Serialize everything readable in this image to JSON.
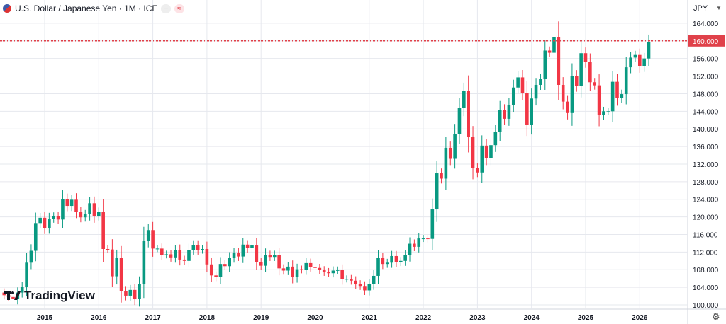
{
  "header": {
    "title": "U.S. Dollar / Japanese Yen · 1M · ICE",
    "pill1": "−",
    "pill2": "≈"
  },
  "currency": "JPY",
  "logo": "TradingView",
  "colors": {
    "up": "#089981",
    "down": "#f23645",
    "priceline": "#e0414a",
    "grid": "#e6e8ee"
  },
  "chart_data": {
    "type": "candlestick",
    "title": "U.S. Dollar / Japanese Yen · 1M · ICE",
    "ylabel": "JPY",
    "ylim": [
      99.5,
      166
    ],
    "yticks": [
      "100.000",
      "104.000",
      "108.000",
      "112.000",
      "116.000",
      "120.000",
      "124.000",
      "128.000",
      "132.000",
      "136.000",
      "140.000",
      "144.000",
      "148.000",
      "152.000",
      "156.000",
      "160.000",
      "164.000"
    ],
    "xticks": [
      "2015",
      "2016",
      "2017",
      "2018",
      "2019",
      "2020",
      "2021",
      "2022",
      "2023",
      "2024",
      "2025",
      "2026"
    ],
    "first_month": "2014-04",
    "first_open": 102.8,
    "closes": [
      102.2,
      101.8,
      101.3,
      102.8,
      104.1,
      109.6,
      112.3,
      118.6,
      119.8,
      117.5,
      119.6,
      120.1,
      119.4,
      124.1,
      122.5,
      123.9,
      121.2,
      119.9,
      120.6,
      123.1,
      120.2,
      121.1,
      112.7,
      112.6,
      106.5,
      110.7,
      103.2,
      102.1,
      103.4,
      101.3,
      104.8,
      114.5,
      117.0,
      112.8,
      112.8,
      111.4,
      111.5,
      110.8,
      112.4,
      110.3,
      110.0,
      112.5,
      113.6,
      112.5,
      112.7,
      109.2,
      106.7,
      106.3,
      109.3,
      108.8,
      110.7,
      111.9,
      111.0,
      113.7,
      112.9,
      113.5,
      109.7,
      108.9,
      111.4,
      110.9,
      111.4,
      108.3,
      107.8,
      108.7,
      106.3,
      108.1,
      108.0,
      109.5,
      108.6,
      108.4,
      107.9,
      107.5,
      107.2,
      107.8,
      107.9,
      105.9,
      105.9,
      105.5,
      104.7,
      104.3,
      103.3,
      104.7,
      106.6,
      110.7,
      109.3,
      109.6,
      111.1,
      109.7,
      110.0,
      111.3,
      113.9,
      113.2,
      115.1,
      115.1,
      115.0,
      121.7,
      129.9,
      128.7,
      135.7,
      133.2,
      138.9,
      144.7,
      148.7,
      138.1,
      131.1,
      130.1,
      136.2,
      133.3,
      136.3,
      139.3,
      144.3,
      142.3,
      145.5,
      149.4,
      151.7,
      148.2,
      141.0,
      146.9,
      150.0,
      151.3,
      157.8,
      157.3,
      160.9,
      150.0,
      146.2,
      143.6,
      152.0,
      149.8,
      157.2,
      155.2,
      150.6,
      149.9,
      143.1,
      144.0,
      144.0,
      150.7,
      147.0,
      147.9,
      154.0,
      156.2,
      156.8,
      154.2,
      156.0,
      159.7
    ],
    "price_line": {
      "value": 160.0,
      "label": "160.000"
    }
  }
}
